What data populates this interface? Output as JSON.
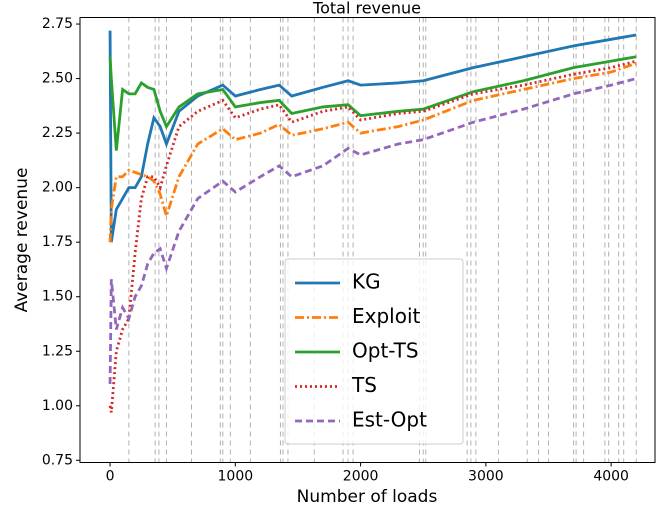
{
  "chart_data": {
    "type": "line",
    "title": "Total revenue",
    "xlabel": "Number of loads",
    "ylabel": "Average revenue",
    "x": [
      0,
      10,
      50,
      100,
      150,
      200,
      250,
      300,
      350,
      400,
      450,
      550,
      700,
      900,
      1000,
      1200,
      1350,
      1450,
      1700,
      1900,
      2000,
      2300,
      2500,
      2900,
      3300,
      3700,
      4000,
      4200
    ],
    "series": [
      {
        "name": "KG",
        "color": "#1f77b4",
        "dash": "solid",
        "values": [
          2.72,
          1.75,
          1.9,
          1.95,
          2.0,
          2.0,
          2.05,
          2.2,
          2.32,
          2.28,
          2.2,
          2.35,
          2.42,
          2.47,
          2.42,
          2.45,
          2.47,
          2.42,
          2.46,
          2.49,
          2.47,
          2.48,
          2.49,
          2.55,
          2.6,
          2.65,
          2.68,
          2.7
        ]
      },
      {
        "name": "Exploit",
        "color": "#ff7f0e",
        "dash": "dashdot",
        "values": [
          1.75,
          1.9,
          2.05,
          2.05,
          2.08,
          2.07,
          2.06,
          2.05,
          2.03,
          1.97,
          1.87,
          2.05,
          2.2,
          2.27,
          2.22,
          2.25,
          2.29,
          2.24,
          2.27,
          2.3,
          2.25,
          2.28,
          2.31,
          2.4,
          2.45,
          2.5,
          2.53,
          2.57
        ]
      },
      {
        "name": "Opt-TS",
        "color": "#2ca02c",
        "dash": "solid",
        "values": [
          2.6,
          2.5,
          2.17,
          2.45,
          2.43,
          2.43,
          2.48,
          2.46,
          2.45,
          2.35,
          2.28,
          2.37,
          2.43,
          2.45,
          2.37,
          2.39,
          2.4,
          2.34,
          2.37,
          2.38,
          2.33,
          2.35,
          2.36,
          2.44,
          2.49,
          2.55,
          2.58,
          2.6
        ]
      },
      {
        "name": "TS",
        "color": "#d62728",
        "dash": "dotted",
        "values": [
          1.0,
          0.97,
          1.25,
          1.35,
          1.4,
          1.7,
          1.95,
          2.05,
          2.05,
          2.0,
          2.1,
          2.28,
          2.35,
          2.4,
          2.32,
          2.36,
          2.38,
          2.3,
          2.35,
          2.37,
          2.31,
          2.34,
          2.35,
          2.43,
          2.47,
          2.52,
          2.55,
          2.58
        ]
      },
      {
        "name": "Est-Opt",
        "color": "#9467bd",
        "dash": "dashed",
        "values": [
          1.1,
          1.58,
          1.35,
          1.45,
          1.4,
          1.5,
          1.55,
          1.65,
          1.7,
          1.72,
          1.63,
          1.8,
          1.95,
          2.03,
          1.98,
          2.05,
          2.1,
          2.05,
          2.1,
          2.18,
          2.15,
          2.2,
          2.22,
          2.3,
          2.36,
          2.43,
          2.47,
          2.5
        ]
      }
    ],
    "vlines": [
      150,
      360,
      390,
      450,
      650,
      880,
      900,
      960,
      1120,
      1360,
      1380,
      1420,
      1630,
      1860,
      1900,
      1940,
      2470,
      2500,
      2520,
      2850,
      2880,
      2920,
      3100,
      3330,
      3420,
      3500,
      3700,
      3720,
      3780,
      3950,
      3980,
      4060,
      4100,
      4200
    ],
    "xlim": [
      -240,
      4350
    ],
    "xticks": [
      0,
      1000,
      2000,
      3000,
      4000
    ],
    "ylim": [
      0.74,
      2.78
    ],
    "yticks": [
      {
        "value": 0.75,
        "label": "0.75"
      },
      {
        "value": 1.0,
        "label": "1.00"
      },
      {
        "value": 1.25,
        "label": "1.25"
      },
      {
        "value": 1.5,
        "label": "1.50"
      },
      {
        "value": 1.75,
        "label": "1.75"
      },
      {
        "value": 2.0,
        "label": "2.00"
      },
      {
        "value": 2.25,
        "label": "2.25"
      },
      {
        "value": 2.5,
        "label": "2.50"
      },
      {
        "value": 2.75,
        "label": "2.75"
      }
    ],
    "legend": "lower center"
  }
}
